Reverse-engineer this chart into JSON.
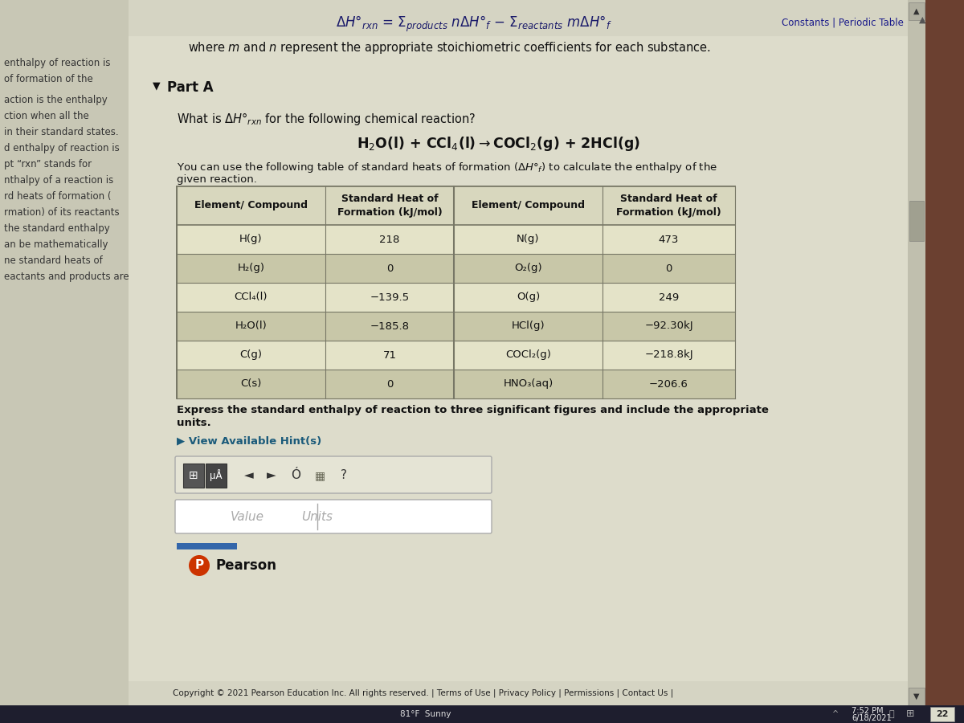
{
  "bg_color": "#d0cfbb",
  "left_bg": "#c8c7b5",
  "main_bg": "#dddccb",
  "right_bg": "#6b4030",
  "scrollbar_bg": "#c0bfae",
  "top_formula_color": "#222244",
  "subtitle_color": "#111111",
  "left_texts": [
    "enthalpy of reaction is",
    "of formation of the",
    "action is the enthalpy",
    "ction when all the",
    "in their standard states.",
    "d enthalpy of reaction is",
    "pt “rxn” stands for",
    "nthalpy of a reaction is",
    "rd heats of formation (",
    "rmation) of its reactants",
    "the standard enthalpy",
    "an be mathematically",
    "ne standard heats of",
    "eactants and products are"
  ],
  "table_col1": [
    "H(g)",
    "H₂(g)",
    "CCl₄(l)",
    "H₂O(l)",
    "C(g)",
    "C(s)"
  ],
  "table_col2": [
    "218",
    "0",
    "−139.5",
    "−185.8",
    "71",
    "0"
  ],
  "table_col3": [
    "N(g)",
    "O₂(g)",
    "O(g)",
    "HCl(g)",
    "COCl₂(g)",
    "HNO₃(aq)"
  ],
  "table_col4": [
    "473",
    "0",
    "249",
    "−92.30kJ",
    "−218.8kJ",
    "−206.6"
  ],
  "footer_text": "Copyright © 2021 Pearson Education Inc. All rights reserved. | Terms of Use | Privacy Policy | Permissions | Contact Us |",
  "table_row_light": "#e4e3c8",
  "table_row_dark": "#c8c7a8",
  "table_header_bg": "#d8d7be"
}
